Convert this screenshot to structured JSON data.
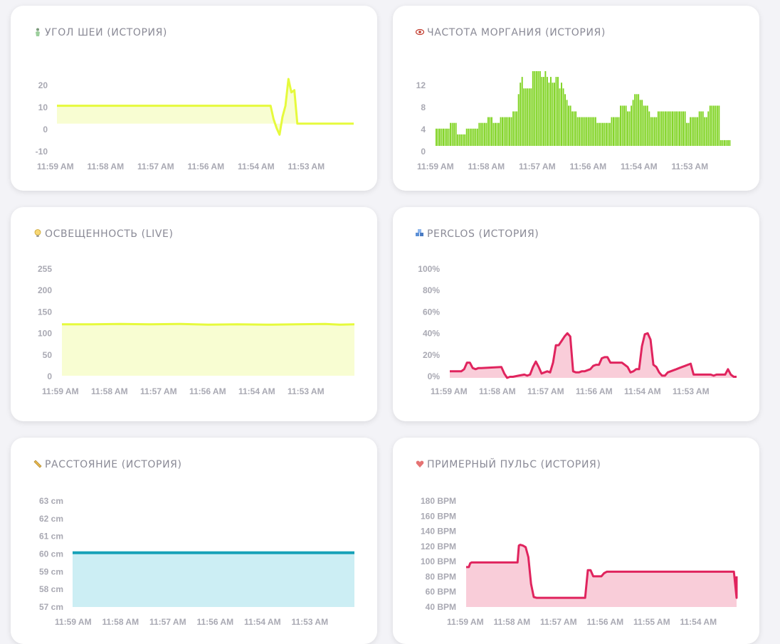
{
  "cards": [
    {
      "title": "УГОЛ ШЕИ (ИСТОРИЯ)",
      "icon": "person-icon"
    },
    {
      "title": "ЧАСТОТА МОРГАНИЯ (ИСТОРИЯ)",
      "icon": "eye-icon"
    },
    {
      "title": "ОСВЕЩЕННОСТЬ (LIVE)",
      "icon": "lightbulb-icon"
    },
    {
      "title": "PERCLOS (ИСТОРИЯ)",
      "icon": "blocks-icon"
    },
    {
      "title": "РАССТОЯНИЕ (ИСТОРИЯ)",
      "icon": "ruler-icon"
    },
    {
      "title": "ПРИМЕРНЫЙ ПУЛЬС (ИСТОРИЯ)",
      "icon": "heart-icon"
    }
  ],
  "colors": {
    "yellow": "#e6fa3c",
    "yellow_fill": "#f8fdd2",
    "green": "#7fd321",
    "pink": "#e0245e",
    "pink_fill": "#f9cdd9",
    "teal": "#17a2b8",
    "teal_fill": "#cceef4"
  },
  "chart_data": [
    {
      "type": "line",
      "ytick_labels": [
        "20",
        "10",
        "0",
        "-10"
      ],
      "ytick_values": [
        20,
        10,
        0,
        -10
      ],
      "ylim": [
        -10,
        20
      ],
      "xtick_labels": [
        "11:59 AM",
        "11:58 AM",
        "11:57 AM",
        "11:56 AM",
        "11:54 AM",
        "11:53 AM"
      ],
      "series": [
        {
          "x": [
            0,
            72,
            73,
            74,
            75,
            76,
            77,
            78,
            79,
            80,
            81,
            82,
            83,
            84,
            85,
            100
          ],
          "y": [
            8,
            8,
            2,
            -2,
            -5,
            3,
            8,
            20,
            14,
            15,
            0,
            0,
            0,
            0,
            0,
            0
          ]
        }
      ],
      "xlim": [
        0,
        100
      ],
      "fill": true
    },
    {
      "type": "bar",
      "ytick_labels": [
        "12",
        "8",
        "4",
        "0"
      ],
      "ytick_values": [
        12,
        8,
        4,
        0
      ],
      "ylim": [
        0,
        13
      ],
      "xtick_labels": [
        "11:59 AM",
        "11:58 AM",
        "11:57 AM",
        "11:56 AM",
        "11:54 AM",
        "11:53 AM"
      ],
      "values": [
        3,
        3,
        3,
        3,
        3,
        3,
        3,
        3,
        4,
        4,
        4,
        4,
        2,
        2,
        2,
        2,
        2,
        3,
        3,
        3,
        3,
        3,
        3,
        3,
        4,
        4,
        4,
        4,
        4,
        5,
        5,
        5,
        4,
        4,
        4,
        4,
        5,
        5,
        5,
        5,
        5,
        5,
        5,
        6,
        6,
        6,
        9,
        11,
        12,
        10,
        10,
        10,
        10,
        10,
        13,
        13,
        13,
        13,
        13,
        12,
        12,
        13,
        12,
        11,
        12,
        11,
        11,
        12,
        12,
        10,
        11,
        10,
        9,
        8,
        7,
        7,
        6,
        6,
        6,
        5,
        5,
        5,
        5,
        5,
        5,
        5,
        5,
        5,
        5,
        5,
        4,
        4,
        4,
        4,
        4,
        4,
        4,
        4,
        5,
        5,
        5,
        5,
        5,
        7,
        7,
        7,
        7,
        6,
        6,
        7,
        8,
        9,
        9,
        9,
        8,
        8,
        7,
        7,
        7,
        6,
        5,
        5,
        5,
        5,
        6,
        6,
        6,
        6,
        6,
        6,
        6,
        6,
        6,
        6,
        6,
        6,
        6,
        6,
        6,
        6,
        4,
        4,
        5,
        5,
        5,
        5,
        5,
        6,
        6,
        6,
        5,
        5,
        6,
        7,
        7,
        7,
        7,
        7,
        7,
        1,
        1,
        1,
        1,
        1,
        1
      ]
    },
    {
      "type": "area",
      "ytick_labels": [
        "255",
        "200",
        "150",
        "100",
        "50",
        "0"
      ],
      "ytick_values": [
        255,
        200,
        150,
        100,
        50,
        0
      ],
      "ylim": [
        0,
        255
      ],
      "xtick_labels": [
        "11:59 AM",
        "11:58 AM",
        "11:57 AM",
        "11:56 AM",
        "11:54 AM",
        "11:53 AM"
      ],
      "series": [
        {
          "x": [
            0,
            10,
            20,
            30,
            40,
            50,
            60,
            70,
            80,
            90,
            95,
            100
          ],
          "y": [
            122,
            122,
            123,
            122,
            123,
            121,
            122,
            121,
            122,
            123,
            121,
            122
          ]
        }
      ],
      "xlim": [
        0,
        100
      ]
    },
    {
      "type": "area",
      "ytick_labels": [
        "100%",
        "80%",
        "60%",
        "40%",
        "20%",
        "0%"
      ],
      "ytick_values": [
        100,
        80,
        60,
        40,
        20,
        0
      ],
      "ylim": [
        0,
        100
      ],
      "xtick_labels": [
        "11:59 AM",
        "11:58 AM",
        "11:57 AM",
        "11:56 AM",
        "11:54 AM",
        "11:53 AM"
      ],
      "series": [
        {
          "x": [
            0,
            4,
            5,
            6,
            7,
            8,
            9,
            10,
            11,
            18,
            19,
            20,
            21,
            22,
            24,
            26,
            27,
            28,
            29,
            30,
            31,
            32,
            33,
            34,
            35,
            36,
            37,
            38,
            39,
            40,
            41,
            42,
            43,
            44,
            45,
            46,
            47,
            48,
            49,
            50,
            51,
            52,
            53,
            54,
            55,
            56,
            57,
            60,
            61,
            62,
            63,
            64,
            65,
            66,
            67,
            68,
            69,
            70,
            71,
            72,
            73,
            74,
            75,
            76,
            77,
            78,
            79,
            80,
            81,
            82,
            83,
            84,
            85,
            86,
            87,
            88,
            89,
            90,
            91,
            92,
            93,
            94,
            95,
            96,
            97,
            98,
            99,
            100
          ],
          "y": [
            6,
            6,
            8,
            14,
            14,
            9,
            8,
            9,
            9,
            10,
            4,
            0,
            1,
            1,
            2,
            3,
            2,
            3,
            10,
            15,
            10,
            4,
            5,
            6,
            5,
            14,
            30,
            30,
            34,
            38,
            41,
            38,
            6,
            5,
            5,
            6,
            6,
            7,
            8,
            11,
            12,
            12,
            18,
            19,
            19,
            14,
            14,
            14,
            12,
            10,
            5,
            6,
            8,
            8,
            29,
            40,
            41,
            35,
            12,
            10,
            5,
            2,
            2,
            5,
            6,
            7,
            8,
            9,
            10,
            11,
            12,
            13,
            3,
            3,
            3,
            3,
            3,
            3,
            3,
            2,
            3,
            3,
            3,
            3,
            8,
            3,
            1,
            1
          ]
        }
      ],
      "xlim": [
        0,
        100
      ]
    },
    {
      "type": "area",
      "ytick_labels": [
        "63 cm",
        "62 cm",
        "61 cm",
        "60 cm",
        "59 cm",
        "58 cm",
        "57 cm"
      ],
      "ytick_values": [
        63,
        62,
        61,
        60,
        59,
        58,
        57
      ],
      "ylim": [
        57,
        63
      ],
      "xtick_labels": [
        "11:59 AM",
        "11:58 AM",
        "11:57 AM",
        "11:56 AM",
        "11:54 AM",
        "11:53 AM"
      ],
      "series": [
        {
          "x": [
            0,
            100
          ],
          "y": [
            60.05,
            60.05
          ]
        }
      ],
      "xlim": [
        0,
        100
      ]
    },
    {
      "type": "area",
      "ytick_labels": [
        "180 BPM",
        "160 BPM",
        "140 BPM",
        "120 BPM",
        "100 BPM",
        "80 BPM",
        "60 BPM",
        "40 BPM"
      ],
      "ytick_values": [
        180,
        160,
        140,
        120,
        100,
        80,
        60,
        40
      ],
      "ylim": [
        40,
        180
      ],
      "xtick_labels": [
        "11:59 AM",
        "11:58 AM",
        "11:57 AM",
        "11:56 AM",
        "11:55 AM",
        "11:54 AM"
      ],
      "series": [
        {
          "x": [
            0,
            1,
            1.5,
            2,
            19,
            19.5,
            20,
            21,
            22,
            23,
            24,
            25,
            26,
            100,
            44,
            45,
            46,
            47,
            48,
            49,
            50,
            51,
            52,
            53,
            99,
            100
          ],
          "y": [
            92,
            92,
            97,
            98,
            98,
            120,
            121,
            120,
            118,
            105,
            70,
            53,
            52,
            52,
            52,
            88,
            88,
            80,
            80,
            80,
            80,
            84,
            86,
            86,
            86,
            80
          ]
        }
      ],
      "xlim": [
        0,
        100
      ],
      "sort": true
    }
  ]
}
